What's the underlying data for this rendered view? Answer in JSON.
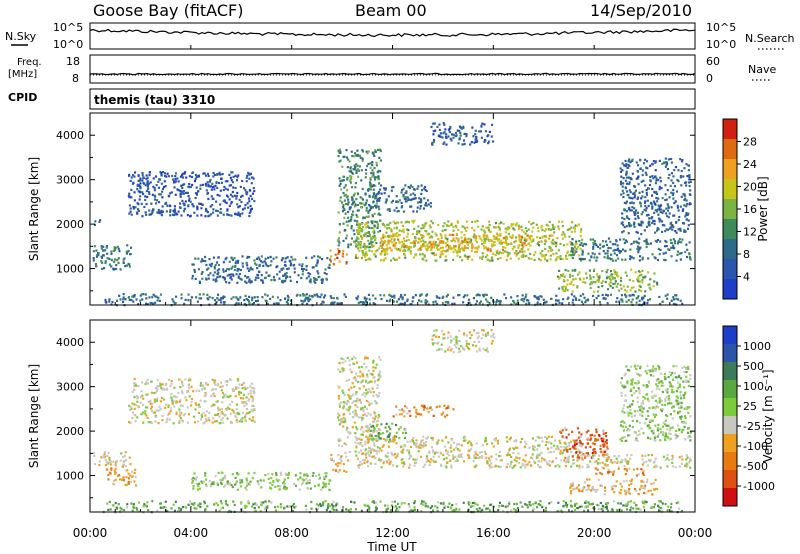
{
  "header": {
    "station": "Goose Bay (fitACF)",
    "beam": "Beam 00",
    "date": "14/Sep/2010"
  },
  "strip_panel": {
    "left_label_top": "N.Sky",
    "left_label_freq_1": "Freq.",
    "left_label_freq_2": "[MHz]",
    "left_label_cpid": "CPID",
    "right_label_top": "N.Search",
    "right_label_nave": "Nave",
    "left_tick_hi": "10^5",
    "left_tick_lo": "10^0",
    "right_tick_hi": "10^5",
    "right_tick_lo": "10^0",
    "freq_tick_hi": "18",
    "freq_tick_lo": "8",
    "nave_tick_hi": "60",
    "nave_tick_lo": "0",
    "cpid_text": "themis (tau) 3310"
  },
  "colors": {
    "power_scale": [
      "#1f3ec8",
      "#2a56b0",
      "#2f6a8a",
      "#3d8a5a",
      "#7cb342",
      "#c6c61a",
      "#f0a020",
      "#e06a10",
      "#d02010"
    ],
    "velocity_scale": [
      "#1f3ec8",
      "#2b55a8",
      "#3d7a5a",
      "#5aa840",
      "#7ccb3a",
      "#c8c8c0",
      "#f0a020",
      "#e87a10",
      "#e05010",
      "#d01010"
    ],
    "ground_scatter": "#c8c8c0"
  },
  "chart_data": [
    {
      "type": "heatmap",
      "panel": "power",
      "ylabel": "Slant Range [km]",
      "ylim": [
        180,
        4500
      ],
      "yticks": [
        "1000",
        "2000",
        "3000",
        "4000"
      ],
      "x_range_hours": [
        0,
        24
      ],
      "colorbar": {
        "label": "Power [dB]",
        "range": [
          0,
          32
        ],
        "ticks": [
          "4",
          "8",
          "12",
          "16",
          "20",
          "24",
          "28"
        ]
      },
      "blobs": [
        {
          "t0": 0.1,
          "t1": 1.6,
          "r0": 1000,
          "r1": 1550,
          "v": 10
        },
        {
          "t0": 0.1,
          "t1": 0.5,
          "r0": 2000,
          "r1": 2150,
          "v": 6
        },
        {
          "t0": 1.5,
          "t1": 6.5,
          "r0": 2200,
          "r1": 3200,
          "v": 5
        },
        {
          "t0": 4.0,
          "t1": 9.5,
          "r0": 700,
          "r1": 1300,
          "v": 8
        },
        {
          "t0": 0.5,
          "t1": 23.5,
          "r0": 200,
          "r1": 450,
          "v": 9
        },
        {
          "t0": 9.5,
          "t1": 10.2,
          "r0": 1100,
          "r1": 1500,
          "v": 26
        },
        {
          "t0": 9.8,
          "t1": 11.5,
          "r0": 1500,
          "r1": 3700,
          "v": 12
        },
        {
          "t0": 10.5,
          "t1": 19.5,
          "r0": 1200,
          "r1": 2100,
          "v": 18
        },
        {
          "t0": 11.5,
          "t1": 17.5,
          "r0": 1400,
          "r1": 1800,
          "v": 22
        },
        {
          "t0": 11.0,
          "t1": 13.5,
          "r0": 2300,
          "r1": 2900,
          "v": 8
        },
        {
          "t0": 19.0,
          "t1": 23.8,
          "r0": 1200,
          "r1": 1700,
          "v": 10
        },
        {
          "t0": 18.5,
          "t1": 22.5,
          "r0": 500,
          "r1": 1000,
          "v": 16
        },
        {
          "t0": 21.0,
          "t1": 23.8,
          "r0": 1800,
          "r1": 3500,
          "v": 7
        },
        {
          "t0": 13.5,
          "t1": 16.0,
          "r0": 3800,
          "r1": 4300,
          "v": 6
        }
      ]
    },
    {
      "type": "heatmap",
      "panel": "velocity",
      "ylabel": "Slant Range [km]",
      "ylim": [
        180,
        4500
      ],
      "yticks": [
        "1000",
        "2000",
        "3000",
        "4000"
      ],
      "x_range_hours": [
        0,
        24
      ],
      "xticks": [
        "00:00",
        "04:00",
        "08:00",
        "12:00",
        "16:00",
        "20:00",
        "00:00"
      ],
      "xlabel": "Time UT",
      "colorbar": {
        "label": "Velocity [m s⁻¹]",
        "ticks": [
          "1000",
          "500",
          "100",
          "25",
          "-25",
          "-100",
          "-500",
          "-1000"
        ]
      },
      "blobs": [
        {
          "t0": 0.1,
          "t1": 1.6,
          "r0": 1200,
          "r1": 1550,
          "v": 5
        },
        {
          "t0": 0.6,
          "t1": 1.8,
          "r0": 800,
          "r1": 1200,
          "v": 6
        },
        {
          "t0": 1.5,
          "t1": 6.5,
          "r0": 2200,
          "r1": 3200,
          "v": 5
        },
        {
          "t0": 4.0,
          "t1": 9.5,
          "r0": 700,
          "r1": 1100,
          "v": 4
        },
        {
          "t0": 0.5,
          "t1": 23.5,
          "r0": 200,
          "r1": 450,
          "v": 3
        },
        {
          "t0": 9.5,
          "t1": 10.2,
          "r0": 1100,
          "r1": 1500,
          "v": 6
        },
        {
          "t0": 9.8,
          "t1": 11.5,
          "r0": 1500,
          "r1": 3700,
          "v": 5
        },
        {
          "t0": 11.0,
          "t1": 12.5,
          "r0": 1800,
          "r1": 2200,
          "v": 3
        },
        {
          "t0": 10.5,
          "t1": 19.5,
          "r0": 1200,
          "r1": 1900,
          "v": 5
        },
        {
          "t0": 12.0,
          "t1": 14.5,
          "r0": 2350,
          "r1": 2600,
          "v": 7
        },
        {
          "t0": 18.5,
          "t1": 20.5,
          "r0": 1400,
          "r1": 2100,
          "v": 8
        },
        {
          "t0": 19.5,
          "t1": 23.8,
          "r0": 1200,
          "r1": 1500,
          "v": 5
        },
        {
          "t0": 19.0,
          "t1": 22.5,
          "r0": 600,
          "r1": 950,
          "v": 6
        },
        {
          "t0": 20.0,
          "t1": 22.0,
          "r0": 1000,
          "r1": 1200,
          "v": 7
        },
        {
          "t0": 21.0,
          "t1": 23.8,
          "r0": 1800,
          "r1": 3500,
          "v": 4
        },
        {
          "t0": 13.5,
          "t1": 16.0,
          "r0": 3800,
          "r1": 4300,
          "v": 5
        }
      ]
    }
  ]
}
